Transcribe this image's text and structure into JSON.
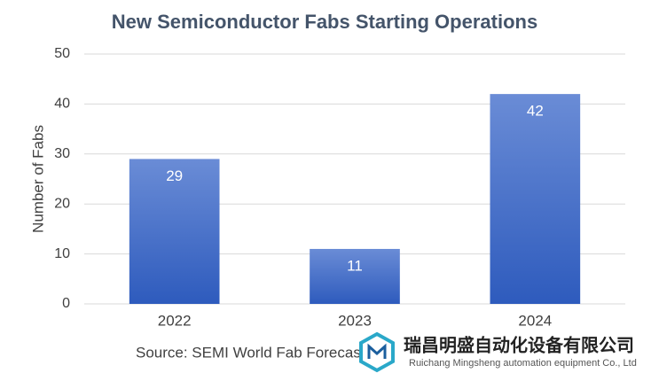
{
  "chart_data": {
    "type": "bar",
    "title": "New Semiconductor Fabs Starting Operations",
    "y_label": "Number of Fabs",
    "source": "Source: SEMI World Fab Forecast",
    "categories": [
      "2022",
      "2023",
      "2024"
    ],
    "values": [
      29,
      11,
      42
    ],
    "color": "#4472c4",
    "ylim": [
      0,
      50
    ],
    "yticks": [
      0,
      10,
      20,
      30,
      40,
      50
    ],
    "grid": true
  },
  "watermark": {
    "name": "瑞昌明盛自动化设备有限公司",
    "subtitle": "Ruichang Mingsheng automation equipment Co., Ltd"
  }
}
